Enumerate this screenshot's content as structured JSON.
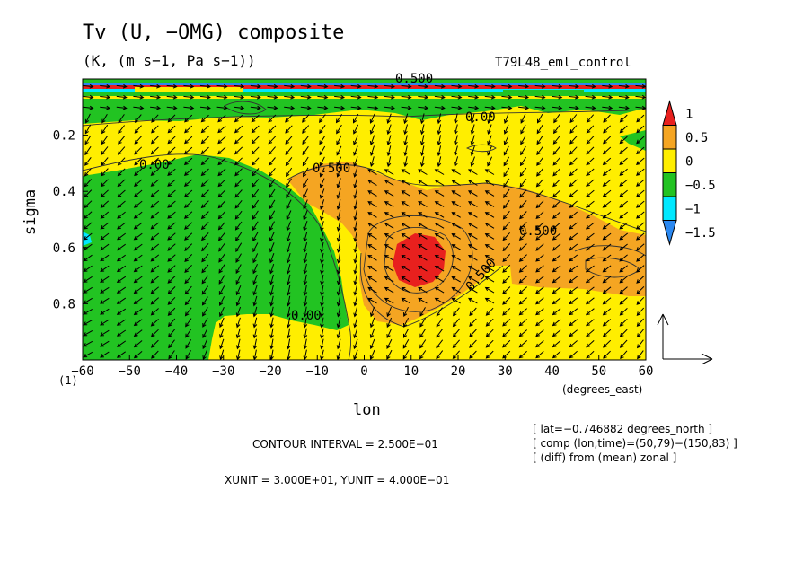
{
  "chart_data": {
    "type": "heatmap",
    "title": "Tv (U, −OMG) composite",
    "subtitle": "(K, (m s−1, Pa s−1))",
    "run_name": "T79L48_eml_control",
    "xlabel": "lon",
    "x_units": "(degrees_east)",
    "ylabel": "sigma",
    "xlim": [
      -60,
      60
    ],
    "ylim": [
      1.0,
      0.0
    ],
    "x_ticks": [
      "−60",
      "−50",
      "−40",
      "−30",
      "−20",
      "−10",
      "0",
      "10",
      "20",
      "30",
      "40",
      "50",
      "60"
    ],
    "x_tick_values": [
      -60,
      -50,
      -40,
      -30,
      -20,
      -10,
      0,
      10,
      20,
      30,
      40,
      50,
      60
    ],
    "y_ticks": [
      "0.2",
      "0.4",
      "0.6",
      "0.8"
    ],
    "y_tick_values": [
      0.2,
      0.4,
      0.6,
      0.8
    ],
    "bottom_marker": "(1)",
    "colorbar": {
      "labels": [
        "1",
        "0.5",
        "0",
        "−0.5",
        "−1",
        "−1.5"
      ],
      "levels": [
        1,
        0.5,
        0,
        -0.5,
        -1,
        -1.5
      ],
      "colors": [
        "#e8201e",
        "#f5a522",
        "#ffee00",
        "#22c322",
        "#00e8ff",
        "#2b88f0"
      ]
    },
    "contour_labels": [
      "0.00",
      "0.500",
      "0.500",
      "0.500",
      "0.00",
      "0.00",
      "0.500"
    ],
    "info_lines": [
      "[ lat=−0.746882 degrees_north ]",
      "[ comp (lon,time)=(50,79)−(150,83) ]",
      "[ (diff) from (mean) zonal ]"
    ],
    "contour_interval": "CONTOUR INTERVAL = 2.500E−01",
    "vector_units": "XUNIT = 3.000E+01, YUNIT = 4.000E−01",
    "regions": [
      {
        "level": "0 to 0.5",
        "description": "yellow background over most of domain"
      },
      {
        "level": "-0.5 to 0",
        "description": "green region west of -10 lon, sigma 0.25-0.9"
      },
      {
        "level": "0.5 to 1",
        "description": "orange region from -10 to 60 lon, sigma 0.35-0.85"
      },
      {
        "level": "> 1",
        "description": "red core near lon 12, sigma 0.6"
      }
    ]
  }
}
